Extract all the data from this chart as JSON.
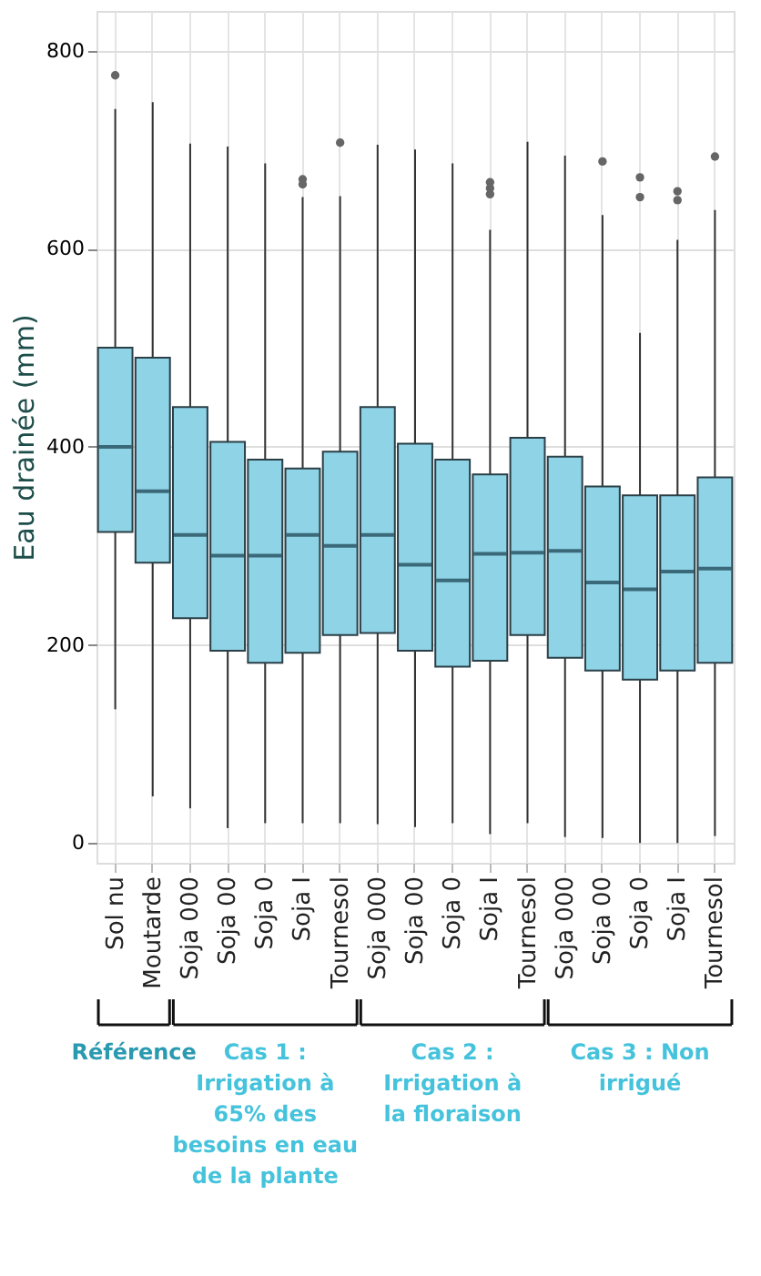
{
  "chart_data": {
    "type": "box",
    "ylabel": "Eau drainée (mm)",
    "color": "#8ed3e6",
    "categories": [
      "Sol nu",
      "Moutarde",
      "Soja 000",
      "Soja 00",
      "Soja 0",
      "Soja I",
      "Tournesol",
      "Soja 000",
      "Soja 00",
      "Soja 0",
      "Soja I",
      "Tournesol",
      "Soja 000",
      "Soja 00",
      "Soja 0",
      "Soja I",
      "Tournesol"
    ],
    "boxes": [
      {
        "low": 135,
        "q1": 314,
        "median": 400,
        "q3": 500,
        "high": 741,
        "outliers": [
          775
        ]
      },
      {
        "low": 47,
        "q1": 283,
        "median": 355,
        "q3": 490,
        "high": 748
      },
      {
        "low": 35,
        "q1": 227,
        "median": 311,
        "q3": 440,
        "high": 706
      },
      {
        "low": 15,
        "q1": 194,
        "median": 290,
        "q3": 405,
        "high": 703
      },
      {
        "low": 20,
        "q1": 182,
        "median": 290,
        "q3": 387,
        "high": 686
      },
      {
        "low": 20,
        "q1": 192,
        "median": 311,
        "q3": 378,
        "high": 652,
        "outliers": [
          665,
          670
        ]
      },
      {
        "low": 20,
        "q1": 210,
        "median": 300,
        "q3": 395,
        "high": 653,
        "outliers": [
          707
        ]
      },
      {
        "low": 19,
        "q1": 212,
        "median": 311,
        "q3": 440,
        "high": 705
      },
      {
        "low": 16,
        "q1": 194,
        "median": 281,
        "q3": 403,
        "high": 700
      },
      {
        "low": 20,
        "q1": 178,
        "median": 265,
        "q3": 387,
        "high": 686
      },
      {
        "low": 9,
        "q1": 184,
        "median": 292,
        "q3": 372,
        "high": 619,
        "outliers": [
          655,
          661,
          667
        ]
      },
      {
        "low": 20,
        "q1": 210,
        "median": 293,
        "q3": 409,
        "high": 708
      },
      {
        "low": 6,
        "q1": 187,
        "median": 295,
        "q3": 390,
        "high": 694
      },
      {
        "low": 5,
        "q1": 174,
        "median": 263,
        "q3": 360,
        "high": 634,
        "outliers": [
          688
        ]
      },
      {
        "low": 0,
        "q1": 165,
        "median": 256,
        "q3": 351,
        "high": 515,
        "outliers": [
          652,
          672
        ]
      },
      {
        "low": 0,
        "q1": 174,
        "median": 274,
        "q3": 351,
        "high": 609,
        "outliers": [
          649,
          658
        ]
      },
      {
        "low": 7,
        "q1": 182,
        "median": 277,
        "q3": 369,
        "high": 639,
        "outliers": [
          693
        ]
      }
    ],
    "ylim": [
      -20,
      840
    ],
    "yticks": [
      0,
      200,
      400,
      600,
      800
    ],
    "grid": true,
    "annotations": [
      "Référence",
      "Cas 1 :\nIrrigation à\n65% des\nbesoins en eau\nde la plante",
      "Cas 2 :\nIrrigation à\nla floraison",
      "Cas 3 : Non\nirrigué"
    ]
  }
}
